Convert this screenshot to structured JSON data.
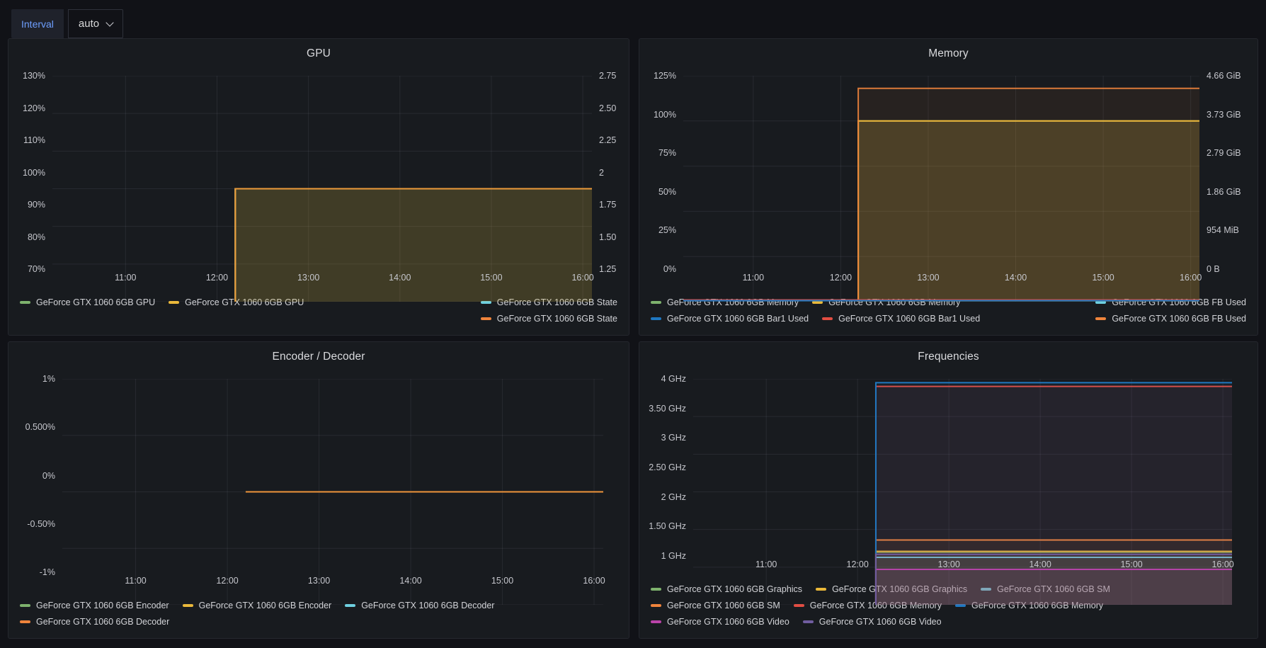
{
  "controls": {
    "interval_label": "Interval",
    "interval_value": "auto"
  },
  "colors": {
    "page_bg": "#111217",
    "panel_bg": "#181b1f",
    "accent_blue": "#6e9fff",
    "grid": "rgba(204,204,220,0.09)",
    "green": "#7EB26D",
    "yellow": "#EAB839",
    "cyan": "#6ED0E0",
    "orange": "#EF843C",
    "red": "#E24D42",
    "blue": "#1F78C1",
    "magenta": "#BA43A9",
    "violet": "#705DA0"
  },
  "chart_data": [
    {
      "id": "gpu",
      "type": "area",
      "title": "GPU",
      "x_axis": {
        "domain_hours": [
          10.2,
          16.1
        ],
        "tick_hours": [
          11,
          12,
          13,
          14,
          15,
          16
        ],
        "tick_labels": [
          "11:00",
          "12:00",
          "13:00",
          "14:00",
          "15:00",
          "16:00"
        ]
      },
      "y_left": {
        "domain": [
          70,
          130
        ],
        "tick_labels": [
          "130%",
          "120%",
          "110%",
          "100%",
          "90%",
          "80%",
          "70%"
        ]
      },
      "y_right": {
        "domain": [
          1.25,
          2.75
        ],
        "tick_labels": [
          "2.75",
          "2.50",
          "2.25",
          "2",
          "1.75",
          "1.50",
          "1.25"
        ]
      },
      "series": [
        {
          "name": "GeForce GTX 1060 6GB State",
          "color": "#6ED0E0",
          "axis": "right",
          "value": 2,
          "start_hour": 12.2
        },
        {
          "name": "GeForce GTX 1060 6GB GPU",
          "color": "#7EB26D",
          "axis": "left",
          "value": 100,
          "start_hour": 12.2,
          "fill_opacity": 0.05
        },
        {
          "name": "GeForce GTX 1060 6GB GPU",
          "color": "#EAB839",
          "axis": "left",
          "value": 100,
          "start_hour": 12.2,
          "fill_opacity": 0.18
        },
        {
          "name": "GeForce GTX 1060 6GB State",
          "color": "#EF843C",
          "axis": "right",
          "value": 2,
          "start_hour": 12.2,
          "line_opacity": 0.55
        }
      ],
      "legend": {
        "left_rows": [
          [
            {
              "color": "#7EB26D",
              "label": "GeForce GTX 1060 6GB GPU"
            },
            {
              "color": "#EAB839",
              "label": "GeForce GTX 1060 6GB GPU"
            }
          ]
        ],
        "right_rows": [
          [
            {
              "color": "#6ED0E0",
              "label": "GeForce GTX 1060 6GB State"
            }
          ],
          [
            {
              "color": "#EF843C",
              "label": "GeForce GTX 1060 6GB State"
            }
          ]
        ]
      }
    },
    {
      "id": "memory",
      "type": "area",
      "title": "Memory",
      "x_axis": {
        "domain_hours": [
          10.2,
          16.1
        ],
        "tick_hours": [
          11,
          12,
          13,
          14,
          15,
          16
        ],
        "tick_labels": [
          "11:00",
          "12:00",
          "13:00",
          "14:00",
          "15:00",
          "16:00"
        ]
      },
      "y_left": {
        "domain": [
          0,
          125
        ],
        "tick_labels": [
          "125%",
          "100%",
          "75%",
          "50%",
          "25%",
          "0%"
        ]
      },
      "y_right": {
        "domain": [
          0,
          4.66
        ],
        "tick_labels": [
          "4.66 GiB",
          "3.73 GiB",
          "2.79 GiB",
          "1.86 GiB",
          "954 MiB",
          "0 B"
        ]
      },
      "series": [
        {
          "name": "GeForce GTX 1060 6GB FB Used",
          "color": "#6ED0E0",
          "axis": "right",
          "value": 0.03,
          "start_hour": null
        },
        {
          "name": "GeForce GTX 1060 6GB Memory",
          "color": "#7EB26D",
          "axis": "left",
          "value": 100,
          "start_hour": 12.2,
          "fill_opacity": 0.05
        },
        {
          "name": "GeForce GTX 1060 6GB Memory",
          "color": "#EAB839",
          "axis": "left",
          "value": 100,
          "start_hour": 12.2,
          "fill_opacity": 0.18
        },
        {
          "name": "GeForce GTX 1060 6GB FB Used",
          "color": "#EF843C",
          "axis": "right",
          "value": 4.4,
          "start_hour": 12.2,
          "fill_opacity": 0.07,
          "line_opacity": 0.9
        },
        {
          "name": "GeForce GTX 1060 6GB Bar1 Used",
          "color": "#E24D42",
          "axis": "left",
          "value": 1.0,
          "start_hour": null
        },
        {
          "name": "GeForce GTX 1060 6GB Bar1 Used",
          "color": "#1F78C1",
          "axis": "left",
          "value": 0.6,
          "start_hour": null
        }
      ],
      "legend": {
        "left_rows": [
          [
            {
              "color": "#7EB26D",
              "label": "GeForce GTX 1060 6GB Memory"
            },
            {
              "color": "#EAB839",
              "label": "GeForce GTX 1060 6GB Memory"
            }
          ],
          [
            {
              "color": "#1F78C1",
              "label": "GeForce GTX 1060 6GB Bar1 Used"
            },
            {
              "color": "#E24D42",
              "label": "GeForce GTX 1060 6GB Bar1 Used"
            }
          ]
        ],
        "right_rows": [
          [
            {
              "color": "#6ED0E0",
              "label": "GeForce GTX 1060 6GB FB Used"
            }
          ],
          [
            {
              "color": "#EF843C",
              "label": "GeForce GTX 1060 6GB FB Used"
            }
          ]
        ]
      }
    },
    {
      "id": "encoder",
      "type": "line",
      "title": "Encoder / Decoder",
      "x_axis": {
        "domain_hours": [
          10.2,
          16.1
        ],
        "tick_hours": [
          11,
          12,
          13,
          14,
          15,
          16
        ],
        "tick_labels": [
          "11:00",
          "12:00",
          "13:00",
          "14:00",
          "15:00",
          "16:00"
        ]
      },
      "y_left": {
        "domain": [
          -1,
          1
        ],
        "tick_labels": [
          "1%",
          "0.500%",
          "0%",
          "-0.50%",
          "-1%"
        ]
      },
      "series": [
        {
          "name": "GeForce GTX 1060 6GB Encoder",
          "color": "#7EB26D",
          "axis": "left",
          "value": 0,
          "start_hour": 12.2
        },
        {
          "name": "GeForce GTX 1060 6GB Decoder",
          "color": "#6ED0E0",
          "axis": "left",
          "value": 0,
          "start_hour": 12.2
        },
        {
          "name": "GeForce GTX 1060 6GB Encoder",
          "color": "#EAB839",
          "axis": "left",
          "value": 0,
          "start_hour": 12.2
        },
        {
          "name": "GeForce GTX 1060 6GB Decoder",
          "color": "#EF843C",
          "axis": "left",
          "value": 0,
          "start_hour": 12.2,
          "line_opacity": 0.7
        }
      ],
      "legend": {
        "left_rows": [
          [
            {
              "color": "#7EB26D",
              "label": "GeForce GTX 1060 6GB Encoder"
            },
            {
              "color": "#EAB839",
              "label": "GeForce GTX 1060 6GB Encoder"
            },
            {
              "color": "#6ED0E0",
              "label": "GeForce GTX 1060 6GB Decoder"
            }
          ],
          [
            {
              "color": "#EF843C",
              "label": "GeForce GTX 1060 6GB Decoder"
            }
          ]
        ],
        "right_rows": []
      }
    },
    {
      "id": "frequencies",
      "type": "area",
      "title": "Frequencies",
      "x_axis": {
        "domain_hours": [
          10.2,
          16.1
        ],
        "tick_hours": [
          11,
          12,
          13,
          14,
          15,
          16
        ],
        "tick_labels": [
          "11:00",
          "12:00",
          "13:00",
          "14:00",
          "15:00",
          "16:00"
        ]
      },
      "y_left": {
        "domain": [
          1,
          4
        ],
        "tick_labels": [
          "4 GHz",
          "3.50 GHz",
          "3 GHz",
          "2.50 GHz",
          "2 GHz",
          "1.50 GHz",
          "1 GHz"
        ]
      },
      "series": [
        {
          "name": "GeForce GTX 1060 6GB Graphics",
          "color": "#7EB26D",
          "axis": "left",
          "value": 1.7,
          "start_hour": 12.2,
          "fill_opacity": 0.05
        },
        {
          "name": "GeForce GTX 1060 6GB Graphics",
          "color": "#EAB839",
          "axis": "left",
          "value": 1.71,
          "start_hour": 12.2,
          "fill_opacity": 0.06
        },
        {
          "name": "GeForce GTX 1060 6GB SM",
          "color": "#6ED0E0",
          "axis": "left",
          "value": 1.63,
          "start_hour": 12.2,
          "fill_opacity": 0.06
        },
        {
          "name": "GeForce GTX 1060 6GB SM",
          "color": "#EF843C",
          "axis": "left",
          "value": 1.86,
          "start_hour": 12.2,
          "fill_opacity": 0.07
        },
        {
          "name": "GeForce GTX 1060 6GB Memory",
          "color": "#E24D42",
          "axis": "left",
          "value": 3.9,
          "start_hour": 12.2,
          "fill_opacity": 0.07
        },
        {
          "name": "GeForce GTX 1060 6GB Memory",
          "color": "#1F78C1",
          "axis": "left",
          "value": 3.95,
          "start_hour": 12.2,
          "fill_opacity": 0.07
        },
        {
          "name": "GeForce GTX 1060 6GB Video",
          "color": "#BA43A9",
          "axis": "left",
          "value": 1.47,
          "start_hour": 12.2,
          "fill_opacity": 0.08
        },
        {
          "name": "GeForce GTX 1060 6GB Video",
          "color": "#705DA0",
          "axis": "left",
          "value": 1.67,
          "start_hour": 12.2,
          "fill_opacity": 0.08
        }
      ],
      "legend": {
        "left_rows": [
          [
            {
              "color": "#7EB26D",
              "label": "GeForce GTX 1060 6GB Graphics"
            },
            {
              "color": "#EAB839",
              "label": "GeForce GTX 1060 6GB Graphics"
            },
            {
              "color": "#6ED0E0",
              "label": "GeForce GTX 1060 6GB SM"
            }
          ],
          [
            {
              "color": "#EF843C",
              "label": "GeForce GTX 1060 6GB SM"
            },
            {
              "color": "#E24D42",
              "label": "GeForce GTX 1060 6GB Memory"
            },
            {
              "color": "#1F78C1",
              "label": "GeForce GTX 1060 6GB Memory"
            }
          ],
          [
            {
              "color": "#BA43A9",
              "label": "GeForce GTX 1060 6GB Video"
            },
            {
              "color": "#705DA0",
              "label": "GeForce GTX 1060 6GB Video"
            }
          ]
        ],
        "right_rows": []
      }
    }
  ]
}
